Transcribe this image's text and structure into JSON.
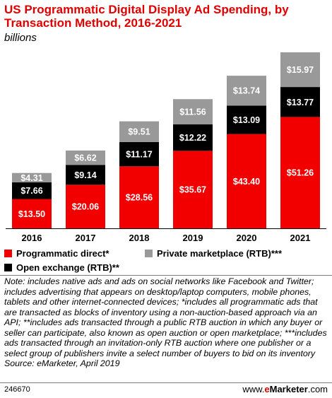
{
  "title": "US Programmatic Digital Display Ad Spending, by Transaction Method, 2016-2021",
  "subtitle": "billions",
  "chart_data": {
    "type": "bar",
    "stacked": true,
    "categories": [
      "2016",
      "2017",
      "2018",
      "2019",
      "2020",
      "2021"
    ],
    "series": [
      {
        "name": "Programmatic direct*",
        "color": "#f20000",
        "labels": [
          "$13.50",
          "$20.06",
          "$28.56",
          "$35.67",
          "$43.40",
          "$51.26"
        ],
        "values": [
          13.5,
          20.06,
          28.56,
          35.67,
          43.4,
          51.26
        ]
      },
      {
        "name": "Open exchange (RTB)**",
        "color": "#000000",
        "labels": [
          "$7.66",
          "$9.14",
          "$11.17",
          "$12.22",
          "$13.09",
          "$13.77"
        ],
        "values": [
          7.66,
          9.14,
          11.17,
          12.22,
          13.09,
          13.77
        ]
      },
      {
        "name": "Private marketplace (RTB)***",
        "color": "#999999",
        "labels": [
          "$4.31",
          "$6.62",
          "$9.51",
          "$11.56",
          "$13.74",
          "$15.97"
        ],
        "values": [
          4.31,
          6.62,
          9.51,
          11.56,
          13.74,
          15.97
        ]
      }
    ],
    "ylim": [
      0,
      81
    ]
  },
  "note": "Note: includes native ads and ads on social networks like Facebook and Twitter; includes advertising that appears on desktop/laptop computers, mobile phones, tablets and other internet-connected devices; *includes all programmatic ads that are transacted as blocks of inventory using a non-auction-based approach via an API; **includes ads transacted through a public RTB auction in which any buyer or seller can participate, also known as open auction or open marketplace; ***includes ads transacted through an invitation-only RTB auction where one publisher or a select group of publishers invite a select number of buyers to bid on its inventory",
  "source": "Source: eMarketer, April 2019",
  "footer": {
    "id": "246670",
    "brand_prefix": "www.",
    "brand_e": "e",
    "brand_main": "Marketer",
    "brand_suffix": ".com"
  }
}
